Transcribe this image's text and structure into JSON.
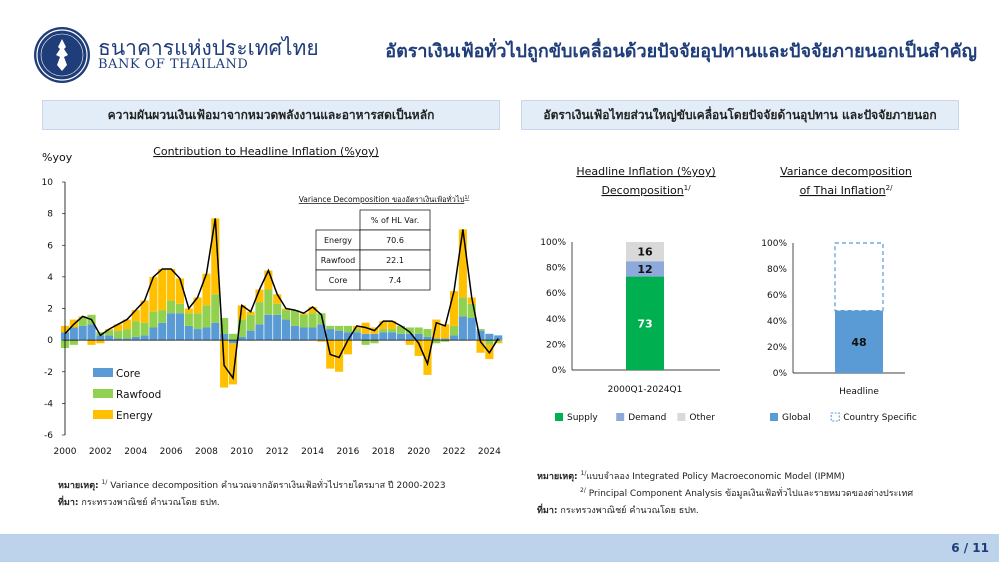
{
  "header": {
    "bank_name_th": "ธนาคารแห่งประเทศไทย",
    "bank_name_en": "BANK OF THAILAND",
    "title": "อัตราเงินเฟ้อทั่วไปถูกขับเคลื่อนด้วยปัจจัยอุปทานและปัจจัยภายนอกเป็นสำคัญ"
  },
  "left_section": {
    "heading": "ความผันผวนเงินเฟ้อมาจากหมวดพลังงานและอาหารสดเป็นหลัก",
    "note_label": "หมายเหตุ:",
    "note_sup": "1/",
    "note_text": "Variance decomposition คำนวณจากอัตราเงินเฟ้อทั่วไปรายไตรมาส ปี 2000-2023",
    "source_label": "ที่มา:",
    "source_text": "กระทรวงพาณิชย์ คำนวณโดย ธปท."
  },
  "right_section": {
    "heading": "อัตราเงินเฟ้อไทยส่วนใหญ่ขับเคลื่อนโดยปัจจัยด้านอุปทาน และปัจจัยภายนอก",
    "note_label": "หมายเหตุ:",
    "note1_sup": "1/",
    "note1_text": "แบบจำลอง Integrated Policy Macroeconomic Model (IPMM)",
    "note2_sup": "2/",
    "note2_text": "Principal Component Analysis ข้อมูลเงินเฟ้อทั่วไปและรายหมวดของต่างประเทศ",
    "source_label": "ที่มา:",
    "source_text": "กระทรวงพาณิชย์ คำนวณโดย ธปท."
  },
  "footer": {
    "page": "6 / 11"
  },
  "chart_data": [
    {
      "type": "bar",
      "title": "Contribution to Headline Inflation (%yoy)",
      "ylabel": "%yoy",
      "ylim": [
        -6,
        10
      ],
      "yticks": [
        -6,
        -4,
        -2,
        0,
        2,
        4,
        6,
        8,
        10
      ],
      "xticks": [
        "2000",
        "2002",
        "2004",
        "2006",
        "2008",
        "2010",
        "2012",
        "2014",
        "2016",
        "2018",
        "2020",
        "2022",
        "2024"
      ],
      "x_start": 2000,
      "x_end": 2024.6,
      "stacked": true,
      "grid": false,
      "legend_position": "bottom-left",
      "series_names": [
        "Core",
        "Rawfood",
        "Energy"
      ],
      "headline_line": "Headline",
      "colors": {
        "Core": "#5b9bd5",
        "Rawfood": "#92d050",
        "Energy": "#ffc000",
        "Headline": "#000000"
      },
      "x": [
        2000.0,
        2000.5,
        2001.0,
        2001.5,
        2002.0,
        2002.5,
        2003.0,
        2003.5,
        2004.0,
        2004.5,
        2005.0,
        2005.5,
        2006.0,
        2006.5,
        2007.0,
        2007.5,
        2008.0,
        2008.5,
        2009.0,
        2009.5,
        2010.0,
        2010.5,
        2011.0,
        2011.5,
        2012.0,
        2012.5,
        2013.0,
        2013.5,
        2014.0,
        2014.5,
        2015.0,
        2015.5,
        2016.0,
        2016.5,
        2017.0,
        2017.5,
        2018.0,
        2018.5,
        2019.0,
        2019.5,
        2020.0,
        2020.5,
        2021.0,
        2021.5,
        2022.0,
        2022.5,
        2023.0,
        2023.5,
        2024.0,
        2024.5
      ],
      "series": [
        {
          "name": "Core",
          "values": [
            0.5,
            0.8,
            0.9,
            1.0,
            0.3,
            0.3,
            0.1,
            0.1,
            0.2,
            0.3,
            0.8,
            1.1,
            1.7,
            1.7,
            0.9,
            0.7,
            0.8,
            1.1,
            0.4,
            -0.2,
            0.2,
            0.6,
            1.0,
            1.6,
            1.6,
            1.3,
            0.9,
            0.8,
            0.8,
            1.0,
            0.7,
            0.6,
            0.5,
            0.5,
            0.4,
            0.4,
            0.5,
            0.5,
            0.4,
            0.4,
            0.4,
            0.2,
            0.1,
            0.1,
            0.3,
            1.5,
            1.4,
            0.6,
            0.4,
            0.3
          ]
        },
        {
          "name": "Rawfood",
          "values": [
            -0.5,
            -0.3,
            0.5,
            0.6,
            0.2,
            0.3,
            0.5,
            0.6,
            1.0,
            0.8,
            1.0,
            0.8,
            0.8,
            0.6,
            0.8,
            1.0,
            1.4,
            1.8,
            1.0,
            0.4,
            1.1,
            1.0,
            1.4,
            1.6,
            0.7,
            0.6,
            1.0,
            0.8,
            0.9,
            0.7,
            0.2,
            0.3,
            0.4,
            0.2,
            -0.3,
            -0.2,
            0.2,
            0.2,
            0.5,
            0.4,
            0.4,
            0.5,
            -0.2,
            -0.1,
            0.6,
            1.2,
            0.9,
            0.1,
            -0.3,
            -0.1
          ]
        },
        {
          "name": "Energy",
          "values": [
            0.4,
            0.5,
            0.1,
            -0.3,
            -0.2,
            0.1,
            0.4,
            0.6,
            0.7,
            1.4,
            2.2,
            2.6,
            2.0,
            1.6,
            0.3,
            1.0,
            2.0,
            4.8,
            -3.0,
            -2.6,
            0.9,
            0.2,
            0.8,
            1.2,
            0.6,
            0.1,
            0.0,
            0.1,
            0.4,
            -0.1,
            -1.8,
            -2.0,
            -0.9,
            0.2,
            0.7,
            0.4,
            0.5,
            0.5,
            0.0,
            -0.3,
            -1.0,
            -2.2,
            1.2,
            0.9,
            2.2,
            4.3,
            0.4,
            -0.8,
            -0.9,
            -0.1
          ]
        }
      ],
      "headline": [
        0.4,
        1.0,
        1.5,
        1.3,
        0.3,
        0.7,
        1.0,
        1.3,
        1.9,
        2.5,
        4.0,
        4.5,
        4.5,
        3.9,
        2.0,
        2.7,
        4.2,
        7.7,
        -1.6,
        -2.4,
        2.2,
        1.8,
        3.2,
        4.4,
        2.9,
        2.0,
        1.9,
        1.7,
        2.1,
        1.6,
        -0.9,
        -1.1,
        0.0,
        0.9,
        0.8,
        0.6,
        1.2,
        1.2,
        0.9,
        0.5,
        -0.2,
        -1.5,
        1.1,
        0.9,
        3.1,
        7.0,
        2.7,
        -0.1,
        -0.8,
        0.1
      ],
      "variance_table": {
        "title": "Variance Decomposition ของอัตราเงินเฟ้อทั่วไป",
        "title_sup": "1/",
        "header": "% of HL Var.",
        "rows": [
          {
            "label": "Energy",
            "value": "70.6"
          },
          {
            "label": "Rawfood",
            "value": "22.1"
          },
          {
            "label": "Core",
            "value": "7.4"
          }
        ]
      }
    },
    {
      "type": "bar",
      "title": "Headline Inflation (%yoy) Decomposition",
      "title_line1": "Headline Inflation (%yoy)",
      "title_line2": "Decomposition",
      "title_sup": "1/",
      "stacked": true,
      "categories": [
        "2000Q1-2024Q1"
      ],
      "ylim": [
        0,
        100
      ],
      "yticks": [
        "0%",
        "20%",
        "40%",
        "60%",
        "80%",
        "100%"
      ],
      "series": [
        {
          "name": "Supply",
          "values": [
            73
          ],
          "color": "#00b050"
        },
        {
          "name": "Demand",
          "values": [
            12
          ],
          "color": "#8eaadb"
        },
        {
          "name": "Other",
          "values": [
            16
          ],
          "color": "#d9d9d9"
        }
      ],
      "legend_position": "bottom"
    },
    {
      "type": "bar",
      "title": "Variance decomposition of Thai Inflation",
      "title_line1": "Variance decomposition",
      "title_line2": "of Thai Inflation",
      "title_sup": "2/",
      "stacked": true,
      "categories": [
        "Headline"
      ],
      "ylim": [
        0,
        100
      ],
      "yticks": [
        "0%",
        "20%",
        "40%",
        "60%",
        "80%",
        "100%"
      ],
      "series": [
        {
          "name": "Global",
          "values": [
            48
          ],
          "color": "#5b9bd5"
        },
        {
          "name": "Country Specific",
          "values": [
            52
          ],
          "color": "#5b9bd5",
          "style": "dashed-outline"
        }
      ],
      "legend_position": "bottom"
    }
  ]
}
